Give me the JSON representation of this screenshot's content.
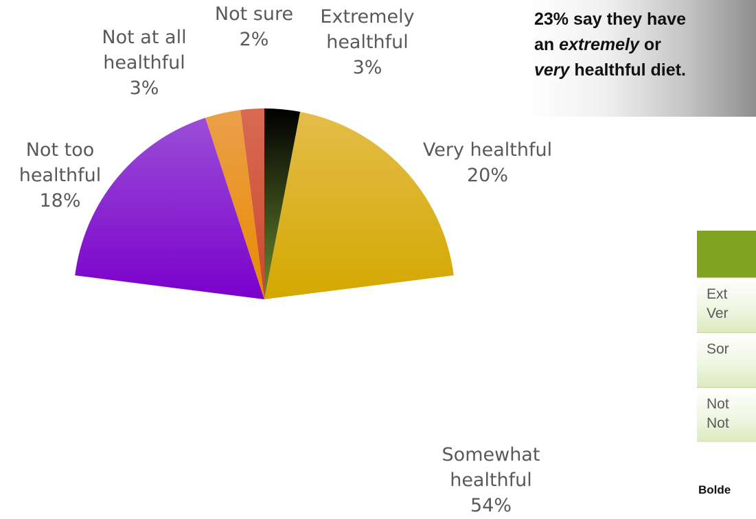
{
  "chart_data": {
    "type": "pie",
    "title": "",
    "slices": [
      {
        "name": "Extremely healthful",
        "line1": "Extremely",
        "line2": "healthful",
        "value": 3,
        "label": "3%",
        "colors": [
          "#000000",
          "#6a8a30"
        ]
      },
      {
        "name": "Very healthful",
        "line1": "Very healthful",
        "line2": "",
        "value": 20,
        "label": "20%",
        "colors": [
          "#e3bd4a",
          "#d4a800"
        ]
      },
      {
        "name": "Somewhat healthful",
        "line1": "Somewhat",
        "line2": "healthful",
        "value": 54,
        "label": "54%",
        "colors": [
          "#ffffff",
          "#ffffff"
        ]
      },
      {
        "name": "Not too healthful",
        "line1": "Not too",
        "line2": "healthful",
        "value": 18,
        "label": "18%",
        "colors": [
          "#9a4ed6",
          "#7a00cc"
        ]
      },
      {
        "name": "Not at all healthful",
        "line1": "Not at all",
        "line2": "healthful",
        "value": 3,
        "label": "3%",
        "colors": [
          "#eba04a",
          "#e88a00"
        ]
      },
      {
        "name": "Not sure",
        "line1": "Not sure",
        "line2": "",
        "value": 2,
        "label": "2%",
        "colors": [
          "#d86a52",
          "#c84a2e"
        ]
      }
    ]
  },
  "callout": {
    "line1": "23% say they have",
    "line2_pre": "an ",
    "line2_em": "extremely",
    "line2_post": " or",
    "line3_em": "very",
    "line3_post": " healthful diet."
  },
  "side_table": {
    "rows": [
      {
        "line1": "Ext",
        "line2": "Ver"
      },
      {
        "line1": "Sor",
        "line2": ""
      },
      {
        "line1": "Not",
        "line2": "Not"
      }
    ],
    "footnote": "Bolde"
  },
  "colors": {
    "label_text": "#595959",
    "table_header": "#7fa320"
  }
}
